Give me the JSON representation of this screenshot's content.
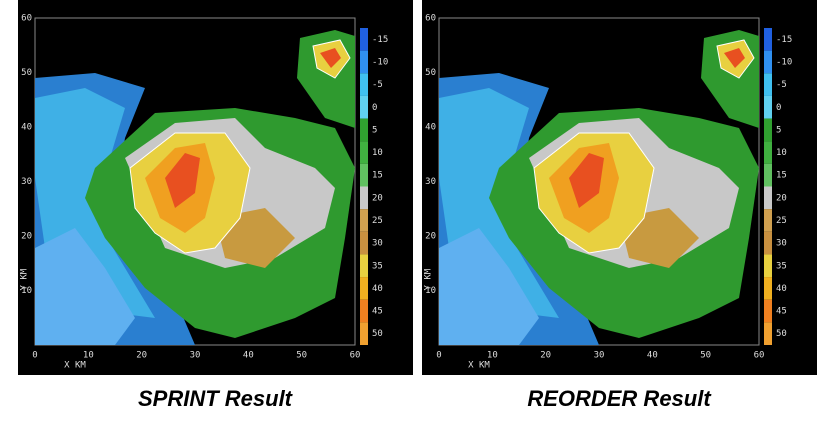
{
  "axes": {
    "x_label": "X KM",
    "y_label": "Y KM",
    "x_ticks": [
      "0",
      "10",
      "20",
      "30",
      "40",
      "50",
      "60"
    ],
    "y_ticks": [
      "60",
      "50",
      "40",
      "30",
      "20",
      "10"
    ]
  },
  "colorbar": {
    "labels": [
      "-15",
      "-10",
      "-5",
      "0",
      "5",
      "10",
      "15",
      "20",
      "25",
      "30",
      "35",
      "40",
      "45",
      "50"
    ]
  },
  "panels": [
    {
      "caption": "SPRINT Result"
    },
    {
      "caption": "REORDER Result"
    }
  ]
}
